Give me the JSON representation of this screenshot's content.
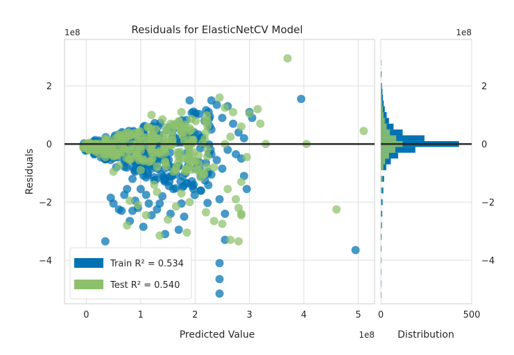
{
  "chart_data": {
    "type": "scatter",
    "title": "Residuals for ElasticNetCV Model",
    "xlabel": "Predicted Value",
    "ylabel": "Residuals",
    "x_offset_label": "1e8",
    "y_offset_label": "1e8",
    "hist_offset_label": "1e8",
    "hist_xlabel": "Distribution",
    "xlim": [
      -0.4,
      5.3
    ],
    "ylim": [
      -5.5,
      3.6
    ],
    "xticks": [
      0,
      1,
      2,
      3,
      4,
      5
    ],
    "yticks": [
      -4,
      -2,
      0,
      2
    ],
    "hist_xlim": [
      0,
      500
    ],
    "hist_xticks": [
      0,
      500
    ],
    "grid": true,
    "zero_line": 0,
    "legend_position": "lower-left",
    "colors": {
      "train": "#0072B2",
      "test": "#8CC06B",
      "zero_line": "#262626",
      "grid": "#DDDDDD",
      "spine": "#CCCCCC"
    },
    "series": [
      {
        "name": "Train",
        "r2_label": "Train R² = 0.534",
        "points": [
          [
            0.35,
            -3.35
          ],
          [
            0.45,
            -1.85
          ],
          [
            0.5,
            -2.05
          ],
          [
            0.6,
            -2.25
          ],
          [
            0.65,
            -2.3
          ],
          [
            0.7,
            -1.75
          ],
          [
            0.75,
            -1.55
          ],
          [
            0.8,
            -2.65
          ],
          [
            0.85,
            -2.3
          ],
          [
            0.9,
            -1.95
          ],
          [
            0.95,
            -2.2
          ],
          [
            1.0,
            -1.55
          ],
          [
            1.05,
            -2.85
          ],
          [
            1.1,
            -1.75
          ],
          [
            1.15,
            -2.05
          ],
          [
            1.2,
            -2.45
          ],
          [
            1.25,
            -1.25
          ],
          [
            1.3,
            -2.25
          ],
          [
            1.35,
            -2.05
          ],
          [
            1.4,
            -1.8
          ],
          [
            1.45,
            -3.1
          ],
          [
            1.55,
            -2.4
          ],
          [
            1.6,
            -1.55
          ],
          [
            1.7,
            -2.95
          ],
          [
            1.75,
            -2.05
          ],
          [
            1.8,
            -2.5
          ],
          [
            1.85,
            -1.35
          ],
          [
            1.95,
            -1.45
          ],
          [
            1.7,
            -0.75
          ],
          [
            2.0,
            -0.85
          ],
          [
            2.1,
            -1.6
          ],
          [
            2.2,
            -0.65
          ],
          [
            2.3,
            -1.05
          ],
          [
            2.4,
            -0.55
          ],
          [
            2.45,
            -1.9
          ],
          [
            2.5,
            -0.85
          ],
          [
            2.3,
            1.5
          ],
          [
            2.25,
            1.1
          ],
          [
            2.4,
            1.35
          ],
          [
            1.9,
            1.5
          ],
          [
            2.0,
            1.0
          ],
          [
            1.6,
            0.5
          ],
          [
            1.8,
            0.3
          ],
          [
            2.3,
            0.5
          ],
          [
            2.5,
            0.9
          ],
          [
            2.6,
            1.3
          ],
          [
            2.7,
            0.7
          ],
          [
            2.8,
            0.4
          ],
          [
            2.9,
            0.2
          ],
          [
            2.6,
            -0.2
          ],
          [
            2.75,
            -0.35
          ],
          [
            2.85,
            -0.5
          ],
          [
            2.9,
            -1.1
          ],
          [
            2.95,
            -1.55
          ],
          [
            3.05,
            0.9
          ],
          [
            3.0,
            1.1
          ],
          [
            2.55,
            -2.4
          ],
          [
            2.45,
            -4.1
          ],
          [
            2.45,
            -4.65
          ],
          [
            2.45,
            -5.15
          ],
          [
            2.55,
            -3.3
          ],
          [
            3.95,
            1.55
          ],
          [
            4.95,
            -3.65
          ],
          [
            0.55,
            -0.8
          ],
          [
            0.7,
            -0.6
          ],
          [
            0.9,
            -0.95
          ],
          [
            1.0,
            -0.55
          ],
          [
            1.2,
            -0.85
          ],
          [
            1.3,
            -0.45
          ],
          [
            1.5,
            -0.7
          ],
          [
            1.1,
            -1.15
          ],
          [
            0.85,
            -1.2
          ],
          [
            1.45,
            -1.3
          ],
          [
            1.65,
            -1.05
          ],
          [
            0.3,
            -0.4
          ],
          [
            0.45,
            -0.55
          ],
          [
            0.2,
            -0.25
          ],
          [
            1.85,
            -0.3
          ],
          [
            2.1,
            0.2
          ],
          [
            2.3,
            -0.35
          ]
        ]
      },
      {
        "name": "Test",
        "r2_label": "Test R² = 0.540",
        "points": [
          [
            3.7,
            2.95
          ],
          [
            5.1,
            0.45
          ],
          [
            4.6,
            -2.25
          ],
          [
            4.05,
            0.0
          ],
          [
            3.3,
            0.0
          ],
          [
            3.2,
            0.7
          ],
          [
            3.0,
            1.05
          ],
          [
            3.15,
            1.2
          ],
          [
            2.45,
            1.6
          ],
          [
            2.55,
            1.25
          ],
          [
            2.7,
            1.1
          ],
          [
            2.85,
            0.6
          ],
          [
            2.65,
            0.25
          ],
          [
            2.95,
            -0.45
          ],
          [
            2.85,
            -1.3
          ],
          [
            2.6,
            -1.55
          ],
          [
            2.75,
            -1.9
          ],
          [
            2.8,
            -2.2
          ],
          [
            2.85,
            -2.45
          ],
          [
            2.65,
            -3.3
          ],
          [
            2.8,
            -3.35
          ],
          [
            2.85,
            -2.4
          ],
          [
            2.5,
            -2.75
          ],
          [
            2.35,
            -2.65
          ],
          [
            1.85,
            -3.05
          ],
          [
            1.9,
            -2.0
          ],
          [
            1.75,
            -1.7
          ],
          [
            1.5,
            -2.6
          ],
          [
            1.35,
            -3.15
          ],
          [
            1.1,
            -2.45
          ],
          [
            0.75,
            -2.8
          ],
          [
            0.8,
            -1.95
          ],
          [
            1.3,
            -1.65
          ],
          [
            1.6,
            -0.95
          ],
          [
            1.95,
            -0.55
          ],
          [
            1.45,
            -0.3
          ],
          [
            1.2,
            1.0
          ],
          [
            1.4,
            0.85
          ],
          [
            1.55,
            0.7
          ],
          [
            2.2,
            0.4
          ],
          [
            1.0,
            -0.9
          ],
          [
            0.6,
            -0.75
          ],
          [
            0.35,
            -0.45
          ],
          [
            0.15,
            -0.2
          ],
          [
            0.25,
            -0.35
          ],
          [
            0.5,
            -0.95
          ],
          [
            2.1,
            -1.15
          ],
          [
            2.35,
            -0.8
          ],
          [
            2.55,
            0.0
          ],
          [
            1.25,
            -1.4
          ],
          [
            1.65,
            -2.15
          ],
          [
            2.2,
            -2.35
          ],
          [
            0.95,
            -2.1
          ],
          [
            1.75,
            1.1
          ],
          [
            1.9,
            0.55
          ]
        ]
      }
    ],
    "histogram": {
      "bin_centers": [
        -5.2,
        -4.8,
        -4.4,
        -4.0,
        -3.6,
        -3.2,
        -2.8,
        -2.4,
        -2.0,
        -1.6,
        -1.2,
        -0.8,
        -0.6,
        -0.4,
        -0.2,
        0.0,
        0.2,
        0.4,
        0.6,
        0.8,
        1.0,
        1.2,
        1.4,
        1.6,
        1.8,
        2.0,
        2.4,
        2.8
      ],
      "bin_width": 0.2,
      "train_counts": [
        2,
        2,
        2,
        2,
        3,
        4,
        6,
        8,
        10,
        14,
        18,
        30,
        55,
        95,
        190,
        430,
        240,
        120,
        70,
        45,
        32,
        22,
        16,
        12,
        9,
        6,
        4,
        2
      ],
      "test_counts": [
        0,
        0,
        0,
        0,
        1,
        2,
        3,
        4,
        5,
        7,
        9,
        14,
        24,
        45,
        80,
        120,
        85,
        50,
        32,
        22,
        15,
        11,
        8,
        6,
        4,
        3,
        2,
        1
      ]
    }
  }
}
